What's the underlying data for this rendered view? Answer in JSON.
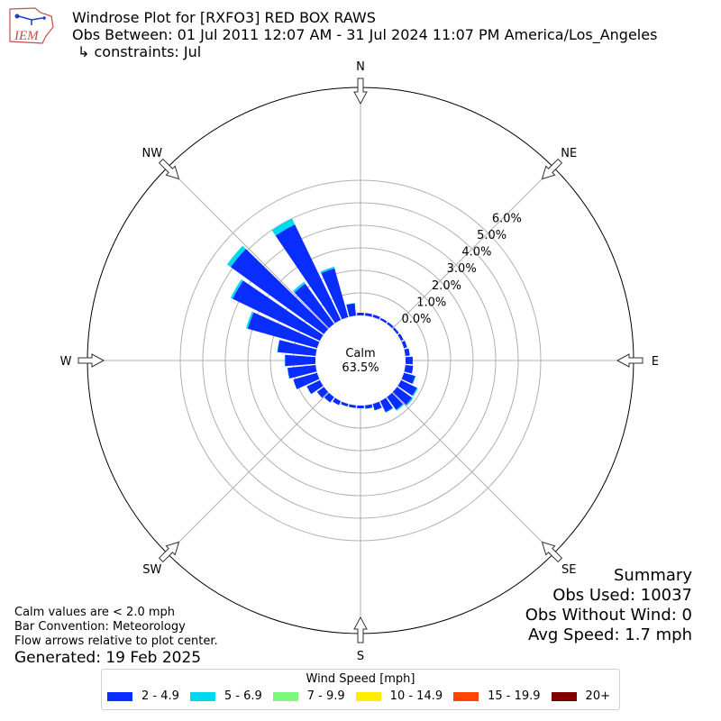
{
  "header": {
    "logo_text": "IEM",
    "title": "Windrose Plot for [RXFO3] RED BOX RAWS",
    "subtitle": "Obs Between: 01 Jul 2011 12:07 AM - 31 Jul 2024 11:07 PM America/Los_Angeles",
    "constraints": "↳ constraints: Jul"
  },
  "summary": {
    "heading": "Summary",
    "obs_used": "Obs Used: 10037",
    "obs_without_wind": "Obs Without Wind: 0",
    "avg_speed": "Avg Speed: 1.7 mph"
  },
  "notes": {
    "calm_note": "Calm values are < 2.0 mph",
    "bar_convention": "Bar Convention: Meteorology",
    "flow_arrows": "Flow arrows relative to plot center.",
    "generated": "Generated: 19 Feb 2025"
  },
  "chart_data": {
    "type": "windrose",
    "calm_label": "Calm",
    "calm_value": "63.5%",
    "directions": [
      "N",
      "NE",
      "E",
      "SE",
      "S",
      "SW",
      "W",
      "NW"
    ],
    "radial_ticks": [
      "0.0%",
      "1.0%",
      "2.0%",
      "3.0%",
      "4.0%",
      "5.0%",
      "6.0%"
    ],
    "radial_max": 6.0,
    "legend_title": "Wind Speed [mph]",
    "speed_bins": [
      {
        "label": "2 - 4.9",
        "color": "#0a2dff"
      },
      {
        "label": "5 - 6.9",
        "color": "#00d8f0"
      },
      {
        "label": "7 - 9.9",
        "color": "#7dfa7d"
      },
      {
        "label": "10 - 14.9",
        "color": "#ffee00"
      },
      {
        "label": "15 - 19.9",
        "color": "#ff4500"
      },
      {
        "label": "20+",
        "color": "#800000"
      }
    ],
    "sectors": [
      {
        "dir": 0,
        "values": [
          0.12,
          0.0,
          0,
          0,
          0,
          0
        ]
      },
      {
        "dir": 10,
        "values": [
          0.12,
          0.0,
          0,
          0,
          0,
          0
        ]
      },
      {
        "dir": 20,
        "values": [
          0.12,
          0.0,
          0,
          0,
          0,
          0
        ]
      },
      {
        "dir": 30,
        "values": [
          0.1,
          0.0,
          0,
          0,
          0,
          0
        ]
      },
      {
        "dir": 40,
        "values": [
          0.1,
          0.0,
          0,
          0,
          0,
          0
        ]
      },
      {
        "dir": 50,
        "values": [
          0.1,
          0.0,
          0,
          0,
          0,
          0
        ]
      },
      {
        "dir": 60,
        "values": [
          0.12,
          0.0,
          0,
          0,
          0,
          0
        ]
      },
      {
        "dir": 70,
        "values": [
          0.15,
          0.0,
          0,
          0,
          0,
          0
        ]
      },
      {
        "dir": 80,
        "values": [
          0.2,
          0.0,
          0,
          0,
          0,
          0
        ]
      },
      {
        "dir": 90,
        "values": [
          0.32,
          0.0,
          0,
          0,
          0,
          0
        ]
      },
      {
        "dir": 100,
        "values": [
          0.35,
          0.0,
          0,
          0,
          0,
          0
        ]
      },
      {
        "dir": 110,
        "values": [
          0.52,
          0.03,
          0,
          0,
          0,
          0
        ]
      },
      {
        "dir": 120,
        "values": [
          0.78,
          0.05,
          0,
          0,
          0,
          0
        ]
      },
      {
        "dir": 130,
        "values": [
          0.82,
          0.06,
          0,
          0,
          0,
          0
        ]
      },
      {
        "dir": 140,
        "values": [
          0.7,
          0.05,
          0,
          0,
          0,
          0
        ]
      },
      {
        "dir": 150,
        "values": [
          0.55,
          0.02,
          0,
          0,
          0,
          0
        ]
      },
      {
        "dir": 160,
        "values": [
          0.3,
          0.0,
          0,
          0,
          0,
          0
        ]
      },
      {
        "dir": 170,
        "values": [
          0.15,
          0.0,
          0,
          0,
          0,
          0
        ]
      },
      {
        "dir": 180,
        "values": [
          0.12,
          0.0,
          0,
          0,
          0,
          0
        ]
      },
      {
        "dir": 190,
        "values": [
          0.12,
          0.0,
          0,
          0,
          0,
          0
        ]
      },
      {
        "dir": 200,
        "values": [
          0.12,
          0.0,
          0,
          0,
          0,
          0
        ]
      },
      {
        "dir": 210,
        "values": [
          0.2,
          0.0,
          0,
          0,
          0,
          0
        ]
      },
      {
        "dir": 220,
        "values": [
          0.3,
          0.0,
          0,
          0,
          0,
          0
        ]
      },
      {
        "dir": 230,
        "values": [
          0.38,
          0.0,
          0,
          0,
          0,
          0
        ]
      },
      {
        "dir": 240,
        "values": [
          0.65,
          0.0,
          0,
          0,
          0,
          0
        ]
      },
      {
        "dir": 250,
        "values": [
          1.1,
          0.0,
          0,
          0,
          0,
          0
        ]
      },
      {
        "dir": 260,
        "values": [
          1.25,
          0.02,
          0,
          0,
          0,
          0
        ]
      },
      {
        "dir": 270,
        "values": [
          1.35,
          0.02,
          0,
          0,
          0,
          0
        ]
      },
      {
        "dir": 280,
        "values": [
          1.7,
          0.02,
          0,
          0,
          0,
          0
        ]
      },
      {
        "dir": 290,
        "values": [
          3.2,
          0.08,
          0,
          0,
          0,
          0
        ]
      },
      {
        "dir": 300,
        "values": [
          4.3,
          0.1,
          0,
          0,
          0,
          0
        ]
      },
      {
        "dir": 310,
        "values": [
          5.1,
          0.2,
          0,
          0,
          0,
          0
        ]
      },
      {
        "dir": 320,
        "values": [
          2.2,
          0.1,
          0,
          0,
          0,
          0
        ]
      },
      {
        "dir": 330,
        "values": [
          4.7,
          0.3,
          0,
          0,
          0,
          0
        ]
      },
      {
        "dir": 340,
        "values": [
          2.25,
          0.08,
          0,
          0,
          0,
          0
        ]
      },
      {
        "dir": 350,
        "values": [
          0.55,
          0.02,
          0,
          0,
          0,
          0
        ]
      }
    ]
  }
}
